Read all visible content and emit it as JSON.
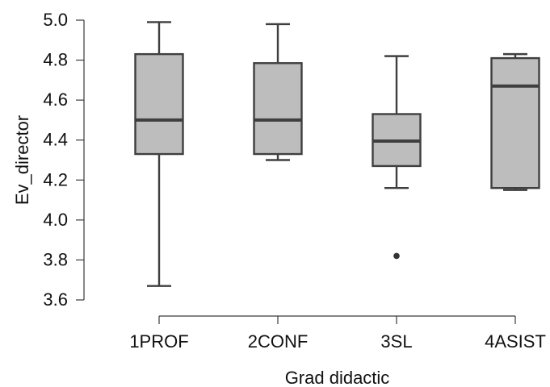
{
  "chart_data": {
    "type": "box",
    "title": "",
    "xlabel": "Grad  didactic",
    "ylabel": "Ev_director",
    "ylim": [
      3.6,
      5.0
    ],
    "yticks": [
      "3.6",
      "3.8",
      "4.0",
      "4.2",
      "4.4",
      "4.6",
      "4.8",
      "5.0"
    ],
    "categories": [
      "1PROF",
      "2CONF",
      "3SL",
      "4ASIST"
    ],
    "boxes": [
      {
        "category": "1PROF",
        "min": 3.67,
        "q1": 4.33,
        "median": 4.5,
        "q3": 4.83,
        "max": 4.99,
        "outliers": []
      },
      {
        "category": "2CONF",
        "min": 4.3,
        "q1": 4.33,
        "median": 4.5,
        "q3": 4.785,
        "max": 4.98,
        "outliers": []
      },
      {
        "category": "3SL",
        "min": 4.16,
        "q1": 4.27,
        "median": 4.395,
        "q3": 4.53,
        "max": 4.82,
        "outliers": [
          3.82
        ]
      },
      {
        "category": "4ASIST",
        "min": 4.15,
        "q1": 4.16,
        "median": 4.67,
        "q3": 4.81,
        "max": 4.83,
        "outliers": []
      }
    ],
    "grid": false,
    "colors": {
      "box_fill": "#bdbdbd",
      "box_stroke": "#3f3f3f",
      "axis": "#3a3a3a",
      "text": "#111111"
    }
  }
}
